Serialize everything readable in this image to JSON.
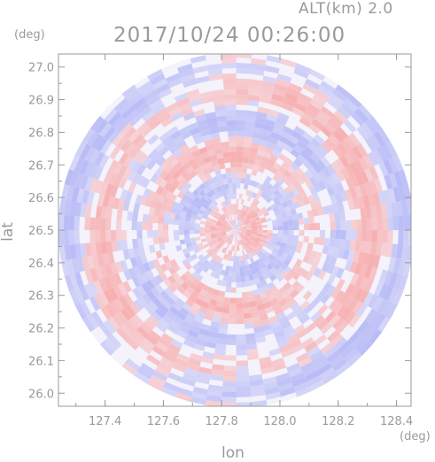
{
  "header": {
    "altitude_label": "ALT(km)  2.0",
    "timestamp": "2017/10/24 00:26:00"
  },
  "colors": {
    "axis": "#9a9a9a",
    "positive": "#f7a9a9",
    "negative": "#b2b6f5",
    "neutral": "#f4f2fb"
  },
  "chart_data": {
    "type": "heatmap",
    "subtype": "radar-ppi-polar",
    "title": "2017/10/24 00:26:00",
    "subtitle": "ALT(km)  2.0",
    "xlabel": "lon",
    "ylabel": "lat",
    "x_unit": "(deg)",
    "y_unit": "(deg)",
    "xlim": [
      127.24,
      128.45
    ],
    "ylim": [
      25.96,
      27.04
    ],
    "x_ticks": [
      127.4,
      127.6,
      127.8,
      128.0,
      128.2,
      128.4
    ],
    "x_tick_labels": [
      "127.4",
      "127.6",
      "127.8",
      "128.0",
      "128.2",
      "128.4"
    ],
    "y_ticks": [
      26.0,
      26.1,
      26.2,
      26.3,
      26.4,
      26.5,
      26.6,
      26.7,
      26.8,
      26.9,
      27.0
    ],
    "y_tick_labels": [
      "26.0",
      "26.1",
      "26.2",
      "26.3",
      "26.4",
      "26.5",
      "26.6",
      "26.7",
      "26.8",
      "26.9",
      "27.0"
    ],
    "radar_center": {
      "lon": 127.85,
      "lat": 26.5
    },
    "radar_range_deg_lat": 0.545,
    "field": "diverging pattern of alternating red (positive) and blue (negative) concentric bands around the radar site",
    "grid": false
  }
}
